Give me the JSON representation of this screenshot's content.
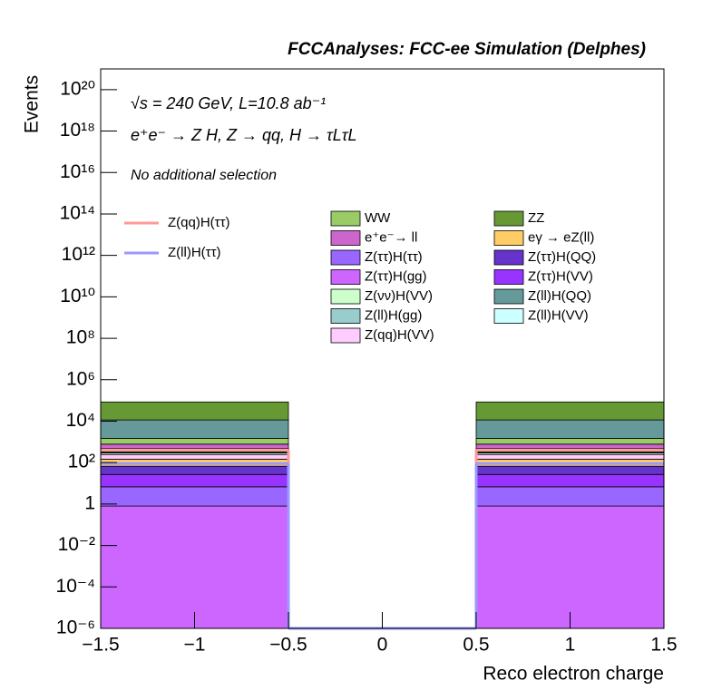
{
  "chart_data": {
    "type": "stacked_histogram",
    "title": "FCCAnalyses: FCC-ee Simulation (Delphes)",
    "annotations": [
      "√s = 240 GeV, L=10.8 ab⁻¹",
      "e⁺e⁻ → Z H, Z → qq, H → τLτL",
      "No additional selection"
    ],
    "x_label": "Reco electron charge",
    "y_label": "Events",
    "log_y": true,
    "bins": [
      -1.5,
      -0.5,
      0.5,
      1.5
    ],
    "xlim": [
      -1.5,
      1.5
    ],
    "xticks": [
      {
        "value": -1.5,
        "label": "−1.5"
      },
      {
        "value": -1,
        "label": "−1"
      },
      {
        "value": -0.5,
        "label": "−0.5"
      },
      0,
      0.5,
      1,
      1.5
    ],
    "ylim": [
      1e-06,
      1e+21
    ],
    "yticks": [
      {
        "value": 1e-06,
        "label": "10⁻⁶"
      },
      {
        "value": 0.0001,
        "label": "10⁻⁴"
      },
      {
        "value": 0.01,
        "label": "10⁻²"
      },
      1,
      {
        "value": 100,
        "label": "10²"
      },
      {
        "value": 10000,
        "label": "10⁴"
      },
      {
        "value": 1000000.0,
        "label": "10⁶"
      },
      {
        "value": 100000000.0,
        "label": "10⁸"
      },
      {
        "value": 10000000000.0,
        "label": "10¹⁰"
      },
      {
        "value": 1000000000000.0,
        "label": "10¹²"
      },
      {
        "value": 100000000000000.0,
        "label": "10¹⁴"
      },
      {
        "value": 1e+16,
        "label": "10¹⁶"
      },
      {
        "value": 1e+18,
        "label": "10¹⁸"
      },
      {
        "value": 1e+20,
        "label": "10²⁰"
      }
    ],
    "series": [
      {
        "name": "WW",
        "color": "#99cc66",
        "values": [
          700,
          0,
          700
        ]
      },
      {
        "name": "ZZ",
        "color": "#669933",
        "values": [
          73000,
          0,
          73000
        ]
      },
      {
        "name": "e⁺e⁻→ ll",
        "color": "#cc66cc",
        "values": [
          300,
          0,
          300
        ]
      },
      {
        "name": "eγ → eZ(ll)",
        "color": "#ffcc66",
        "values": [
          80,
          0,
          80
        ]
      },
      {
        "name": "Z(ττ)H(ττ)",
        "color": "#9966ff",
        "values": [
          6,
          0,
          6
        ]
      },
      {
        "name": "Z(ττ)H(QQ)",
        "color": "#6633cc",
        "values": [
          40,
          0,
          40
        ]
      },
      {
        "name": "Z(ττ)H(gg)",
        "color": "#cc66ff",
        "values": [
          0.8,
          0,
          0.8
        ]
      },
      {
        "name": "Z(ττ)H(VV)",
        "color": "#9933ff",
        "values": [
          20,
          0,
          20
        ]
      },
      {
        "name": "Z(νν)H(VV)",
        "color": "#ccffcc",
        "values": [
          50,
          0,
          50
        ]
      },
      {
        "name": "Z(ll)H(QQ)",
        "color": "#669999",
        "values": [
          10000,
          0,
          10000
        ]
      },
      {
        "name": "Z(ll)H(gg)",
        "color": "#99cccc",
        "values": [
          150,
          0,
          150
        ]
      },
      {
        "name": "Z(ll)H(VV)",
        "color": "#ccffff",
        "values": [
          30,
          0,
          30
        ]
      },
      {
        "name": "Z(qq)H(VV)",
        "color": "#ffccff",
        "values": [
          100,
          0,
          100
        ]
      }
    ],
    "signals": [
      {
        "name": "Z(qq)H(ττ)",
        "color": "#ff9999",
        "values": [
          400,
          0,
          400
        ]
      },
      {
        "name": "Z(ll)H(ττ)",
        "color": "#9999ff",
        "values": [
          90,
          0,
          90
        ]
      }
    ]
  }
}
